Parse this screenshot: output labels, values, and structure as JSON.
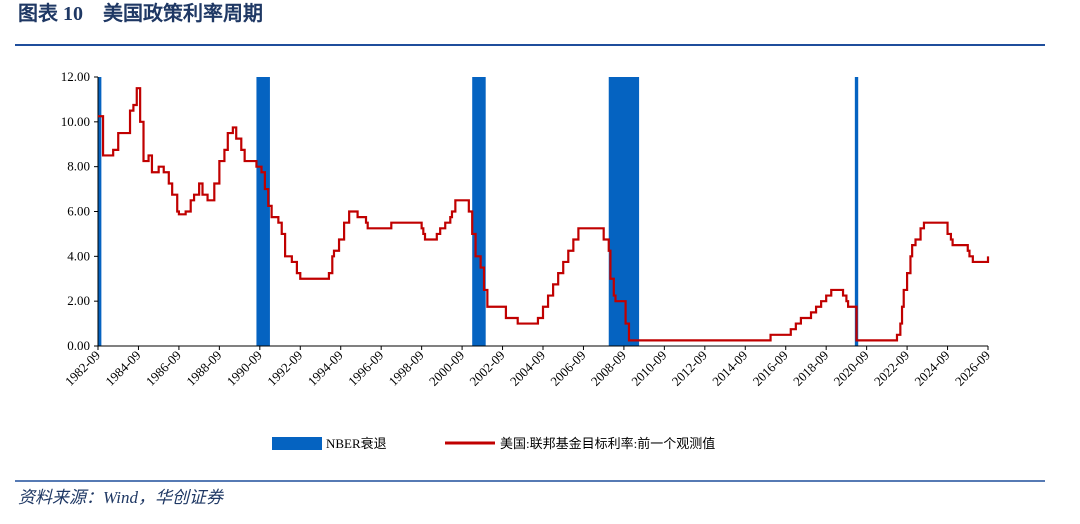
{
  "chart_data": {
    "type": "line",
    "title": "图表 10　美国政策利率周期",
    "source": "资料来源：Wind，华创证券",
    "xlim": [
      "1982-09",
      "2026-09"
    ],
    "xticks": [
      "1982-09",
      "1984-09",
      "1986-09",
      "1988-09",
      "1990-09",
      "1992-09",
      "1994-09",
      "1996-09",
      "1998-09",
      "2000-09",
      "2002-09",
      "2004-09",
      "2006-09",
      "2008-09",
      "2010-09",
      "2012-09",
      "2014-09",
      "2016-09",
      "2018-09",
      "2020-09",
      "2022-09",
      "2024-09",
      "2026-09"
    ],
    "ylim": [
      0,
      12
    ],
    "yticks": [
      {
        "value": 0,
        "label": "0.00"
      },
      {
        "value": 2,
        "label": "2.00"
      },
      {
        "value": 4,
        "label": "4.00"
      },
      {
        "value": 6,
        "label": "6.00"
      },
      {
        "value": 8,
        "label": "8.00"
      },
      {
        "value": 10,
        "label": "10.00"
      },
      {
        "value": 12,
        "label": "12.00"
      }
    ],
    "step": true,
    "recessions": {
      "name": "NBER衰退",
      "color": "#0563c1",
      "periods": [
        {
          "start": "1982-09",
          "end": "1982-11"
        },
        {
          "start": "1990-07",
          "end": "1991-03"
        },
        {
          "start": "2001-03",
          "end": "2001-11"
        },
        {
          "start": "2007-12",
          "end": "2009-06"
        },
        {
          "start": "2020-02",
          "end": "2020-04"
        }
      ]
    },
    "series": [
      {
        "name": "美国:联邦基金目标利率:前一个观测值",
        "color": "#c00000",
        "x": [
          "1982-09",
          "1982-12",
          "1983-06",
          "1983-09",
          "1984-04",
          "1984-06",
          "1984-08",
          "1984-10",
          "1984-12",
          "1985-03",
          "1985-05",
          "1985-09",
          "1985-12",
          "1986-03",
          "1986-05",
          "1986-08",
          "1986-09",
          "1987-01",
          "1987-04",
          "1987-06",
          "1987-09",
          "1987-11",
          "1988-02",
          "1988-06",
          "1988-09",
          "1988-12",
          "1989-02",
          "1989-05",
          "1989-07",
          "1989-10",
          "1989-12",
          "1990-07",
          "1990-10",
          "1990-12",
          "1991-02",
          "1991-04",
          "1991-08",
          "1991-10",
          "1991-12",
          "1992-04",
          "1992-07",
          "1992-09",
          "1994-02",
          "1994-04",
          "1994-05",
          "1994-08",
          "1994-11",
          "1995-02",
          "1995-07",
          "1995-12",
          "1996-01",
          "1997-03",
          "1998-09",
          "1998-10",
          "1998-11",
          "1999-06",
          "1999-08",
          "1999-11",
          "2000-02",
          "2000-03",
          "2000-05",
          "2001-01",
          "2001-03",
          "2001-05",
          "2001-08",
          "2001-10",
          "2001-12",
          "2002-11",
          "2003-06",
          "2004-06",
          "2004-09",
          "2004-12",
          "2005-03",
          "2005-06",
          "2005-09",
          "2005-12",
          "2006-03",
          "2006-06",
          "2007-08",
          "2007-09",
          "2007-12",
          "2008-01",
          "2008-03",
          "2008-04",
          "2008-10",
          "2008-12",
          "2015-12",
          "2016-12",
          "2017-03",
          "2017-06",
          "2017-12",
          "2018-03",
          "2018-06",
          "2018-09",
          "2018-12",
          "2019-07",
          "2019-09",
          "2019-10",
          "2020-03",
          "2022-03",
          "2022-05",
          "2022-06",
          "2022-07",
          "2022-09",
          "2022-11",
          "2022-12",
          "2023-02",
          "2023-05",
          "2023-07",
          "2024-09",
          "2024-11",
          "2024-12",
          "2025-09",
          "2025-10",
          "2025-12",
          "2026-09"
        ],
        "values": [
          10.25,
          8.5,
          8.75,
          9.5,
          10.5,
          10.75,
          11.5,
          10,
          8.25,
          8.5,
          7.75,
          8,
          7.75,
          7.25,
          6.75,
          6,
          5.875,
          6,
          6.5,
          6.75,
          7.25,
          6.75,
          6.5,
          7.25,
          8.25,
          8.75,
          9.5,
          9.75,
          9.25,
          8.75,
          8.25,
          8,
          7.75,
          7,
          6.25,
          5.75,
          5.5,
          5,
          4,
          3.75,
          3.25,
          3,
          3.25,
          4,
          4.25,
          4.75,
          5.5,
          6,
          5.75,
          5.5,
          5.25,
          5.5,
          5.25,
          5,
          4.75,
          5,
          5.25,
          5.5,
          5.75,
          6,
          6.5,
          6,
          5,
          4,
          3.5,
          2.5,
          1.75,
          1.25,
          1,
          1.25,
          1.75,
          2.25,
          2.75,
          3.25,
          3.75,
          4.25,
          4.75,
          5.25,
          5.25,
          4.75,
          4.25,
          3,
          2.25,
          2,
          1,
          0.25,
          0.5,
          0.75,
          1,
          1.25,
          1.5,
          1.75,
          2,
          2.25,
          2.5,
          2.25,
          2,
          1.75,
          0.25,
          0.5,
          1,
          1.75,
          2.5,
          3.25,
          4,
          4.5,
          4.75,
          5.25,
          5.5,
          5,
          4.75,
          4.5,
          4.25,
          4,
          3.75,
          4
        ]
      }
    ]
  }
}
